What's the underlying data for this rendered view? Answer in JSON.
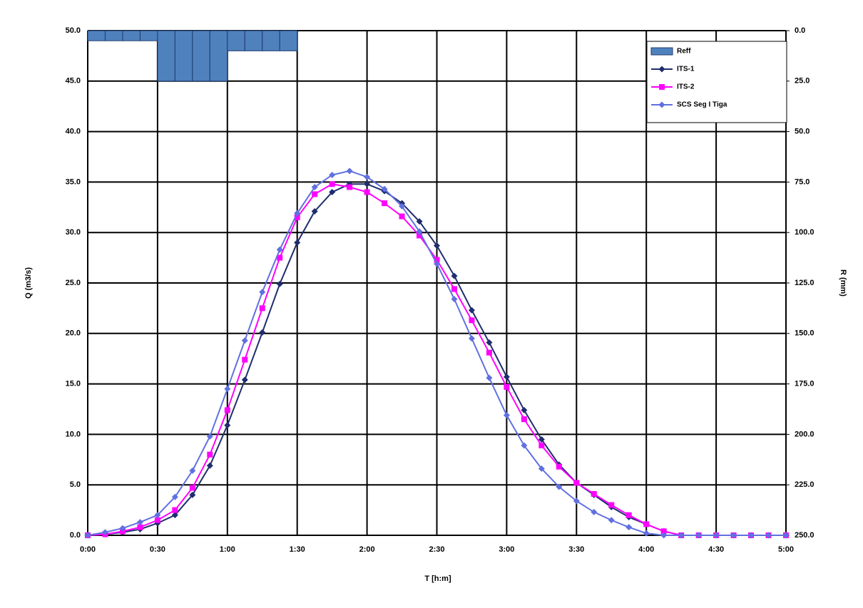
{
  "chart_data": {
    "type": "line",
    "xlabel": "T [h:m]",
    "ylabel": "Q (m3/s)",
    "y2label": "R (mm)",
    "x": [
      0,
      0.125,
      0.25,
      0.375,
      0.5,
      0.625,
      0.75,
      0.875,
      1,
      1.125,
      1.25,
      1.375,
      1.5,
      1.625,
      1.75,
      1.875,
      2,
      2.125,
      2.25,
      2.375,
      2.5,
      2.625,
      2.75,
      2.875,
      3,
      3.125,
      3.25,
      3.375,
      3.5,
      3.625,
      3.75,
      3.875,
      4,
      4.125,
      4.25,
      4.375,
      4.5,
      4.625,
      4.75,
      4.875,
      5
    ],
    "xlim": [
      0,
      5
    ],
    "xticks": [
      {
        "value": 0,
        "label": "0:00"
      },
      {
        "value": 0.5,
        "label": "0:30"
      },
      {
        "value": 1,
        "label": "1:00"
      },
      {
        "value": 1.5,
        "label": "1:30"
      },
      {
        "value": 2,
        "label": "2:00"
      },
      {
        "value": 2.5,
        "label": "2:30"
      },
      {
        "value": 3,
        "label": "3:00"
      },
      {
        "value": 3.5,
        "label": "3:30"
      },
      {
        "value": 4,
        "label": "4:00"
      },
      {
        "value": 4.5,
        "label": "4:30"
      },
      {
        "value": 5,
        "label": "5:00"
      }
    ],
    "ylim": [
      0,
      50
    ],
    "yticks": [
      {
        "value": 0,
        "label": "0.0"
      },
      {
        "value": 5,
        "label": "5.0"
      },
      {
        "value": 10,
        "label": "10.0"
      },
      {
        "value": 15,
        "label": "15.0"
      },
      {
        "value": 20,
        "label": "20.0"
      },
      {
        "value": 25,
        "label": "25.0"
      },
      {
        "value": 30,
        "label": "30.0"
      },
      {
        "value": 35,
        "label": "35.0"
      },
      {
        "value": 40,
        "label": "40.0"
      },
      {
        "value": 45,
        "label": "45.0"
      },
      {
        "value": 50,
        "label": "50.0"
      }
    ],
    "y2lim": [
      0,
      250
    ],
    "y2_reversed": true,
    "y2ticks": [
      {
        "value": 0,
        "label": "0.0"
      },
      {
        "value": 25,
        "label": "25.0"
      },
      {
        "value": 50,
        "label": "50.0"
      },
      {
        "value": 75,
        "label": "75.0"
      },
      {
        "value": 100,
        "label": "100.0"
      },
      {
        "value": 125,
        "label": "125.0"
      },
      {
        "value": 150,
        "label": "150.0"
      },
      {
        "value": 175,
        "label": "175.0"
      },
      {
        "value": 200,
        "label": "200.0"
      },
      {
        "value": 225,
        "label": "225.0"
      },
      {
        "value": 250,
        "label": "250.0"
      }
    ],
    "grid": true,
    "legend": "upper right",
    "series": [
      {
        "name": "Reff",
        "type": "bar",
        "axis": "y2",
        "color": "#4f81bd",
        "x": [
          0.0625,
          0.1875,
          0.3125,
          0.4375,
          0.5625,
          0.6875,
          0.8125,
          0.9375,
          1.0625,
          1.1875,
          1.3125,
          1.4375
        ],
        "values": [
          5,
          5,
          5,
          5,
          25,
          25,
          25,
          25,
          10,
          10,
          10,
          10
        ]
      },
      {
        "name": "ITS-1",
        "color": "#1f2d6e",
        "marker": "diamond",
        "values": [
          0,
          0.1,
          0.3,
          0.6,
          1.2,
          2.0,
          4.0,
          6.9,
          10.9,
          15.4,
          20.1,
          24.9,
          29.0,
          32.1,
          34.0,
          34.8,
          34.8,
          34.1,
          32.9,
          31.1,
          28.7,
          25.7,
          22.3,
          19.1,
          15.7,
          12.4,
          9.5,
          7.0,
          5.2,
          4.0,
          2.8,
          1.8,
          1.1,
          0.4,
          0,
          0,
          0,
          0,
          0,
          0,
          0
        ]
      },
      {
        "name": "ITS-2",
        "color": "#ff00ff",
        "marker": "square",
        "values": [
          0,
          0.1,
          0.4,
          0.8,
          1.5,
          2.5,
          4.7,
          8.0,
          12.4,
          17.4,
          22.5,
          27.5,
          31.5,
          33.8,
          34.8,
          34.5,
          34.0,
          32.9,
          31.6,
          29.7,
          27.3,
          24.4,
          21.3,
          18.1,
          14.7,
          11.5,
          8.9,
          6.8,
          5.2,
          4.1,
          3.0,
          2.0,
          1.1,
          0.4,
          0,
          0,
          0,
          0,
          0,
          0,
          0
        ]
      },
      {
        "name": "SCS Seg I Tiga",
        "color": "#6070e0",
        "marker": "diamond",
        "values": [
          0,
          0.3,
          0.7,
          1.3,
          2.0,
          3.8,
          6.4,
          9.8,
          14.5,
          19.3,
          24.1,
          28.3,
          31.9,
          34.5,
          35.7,
          36.1,
          35.5,
          34.3,
          32.6,
          30.1,
          26.9,
          23.4,
          19.5,
          15.6,
          11.9,
          8.9,
          6.6,
          4.8,
          3.4,
          2.3,
          1.5,
          0.8,
          0.2,
          0,
          0,
          0,
          0,
          0,
          0,
          0,
          0
        ]
      }
    ]
  }
}
